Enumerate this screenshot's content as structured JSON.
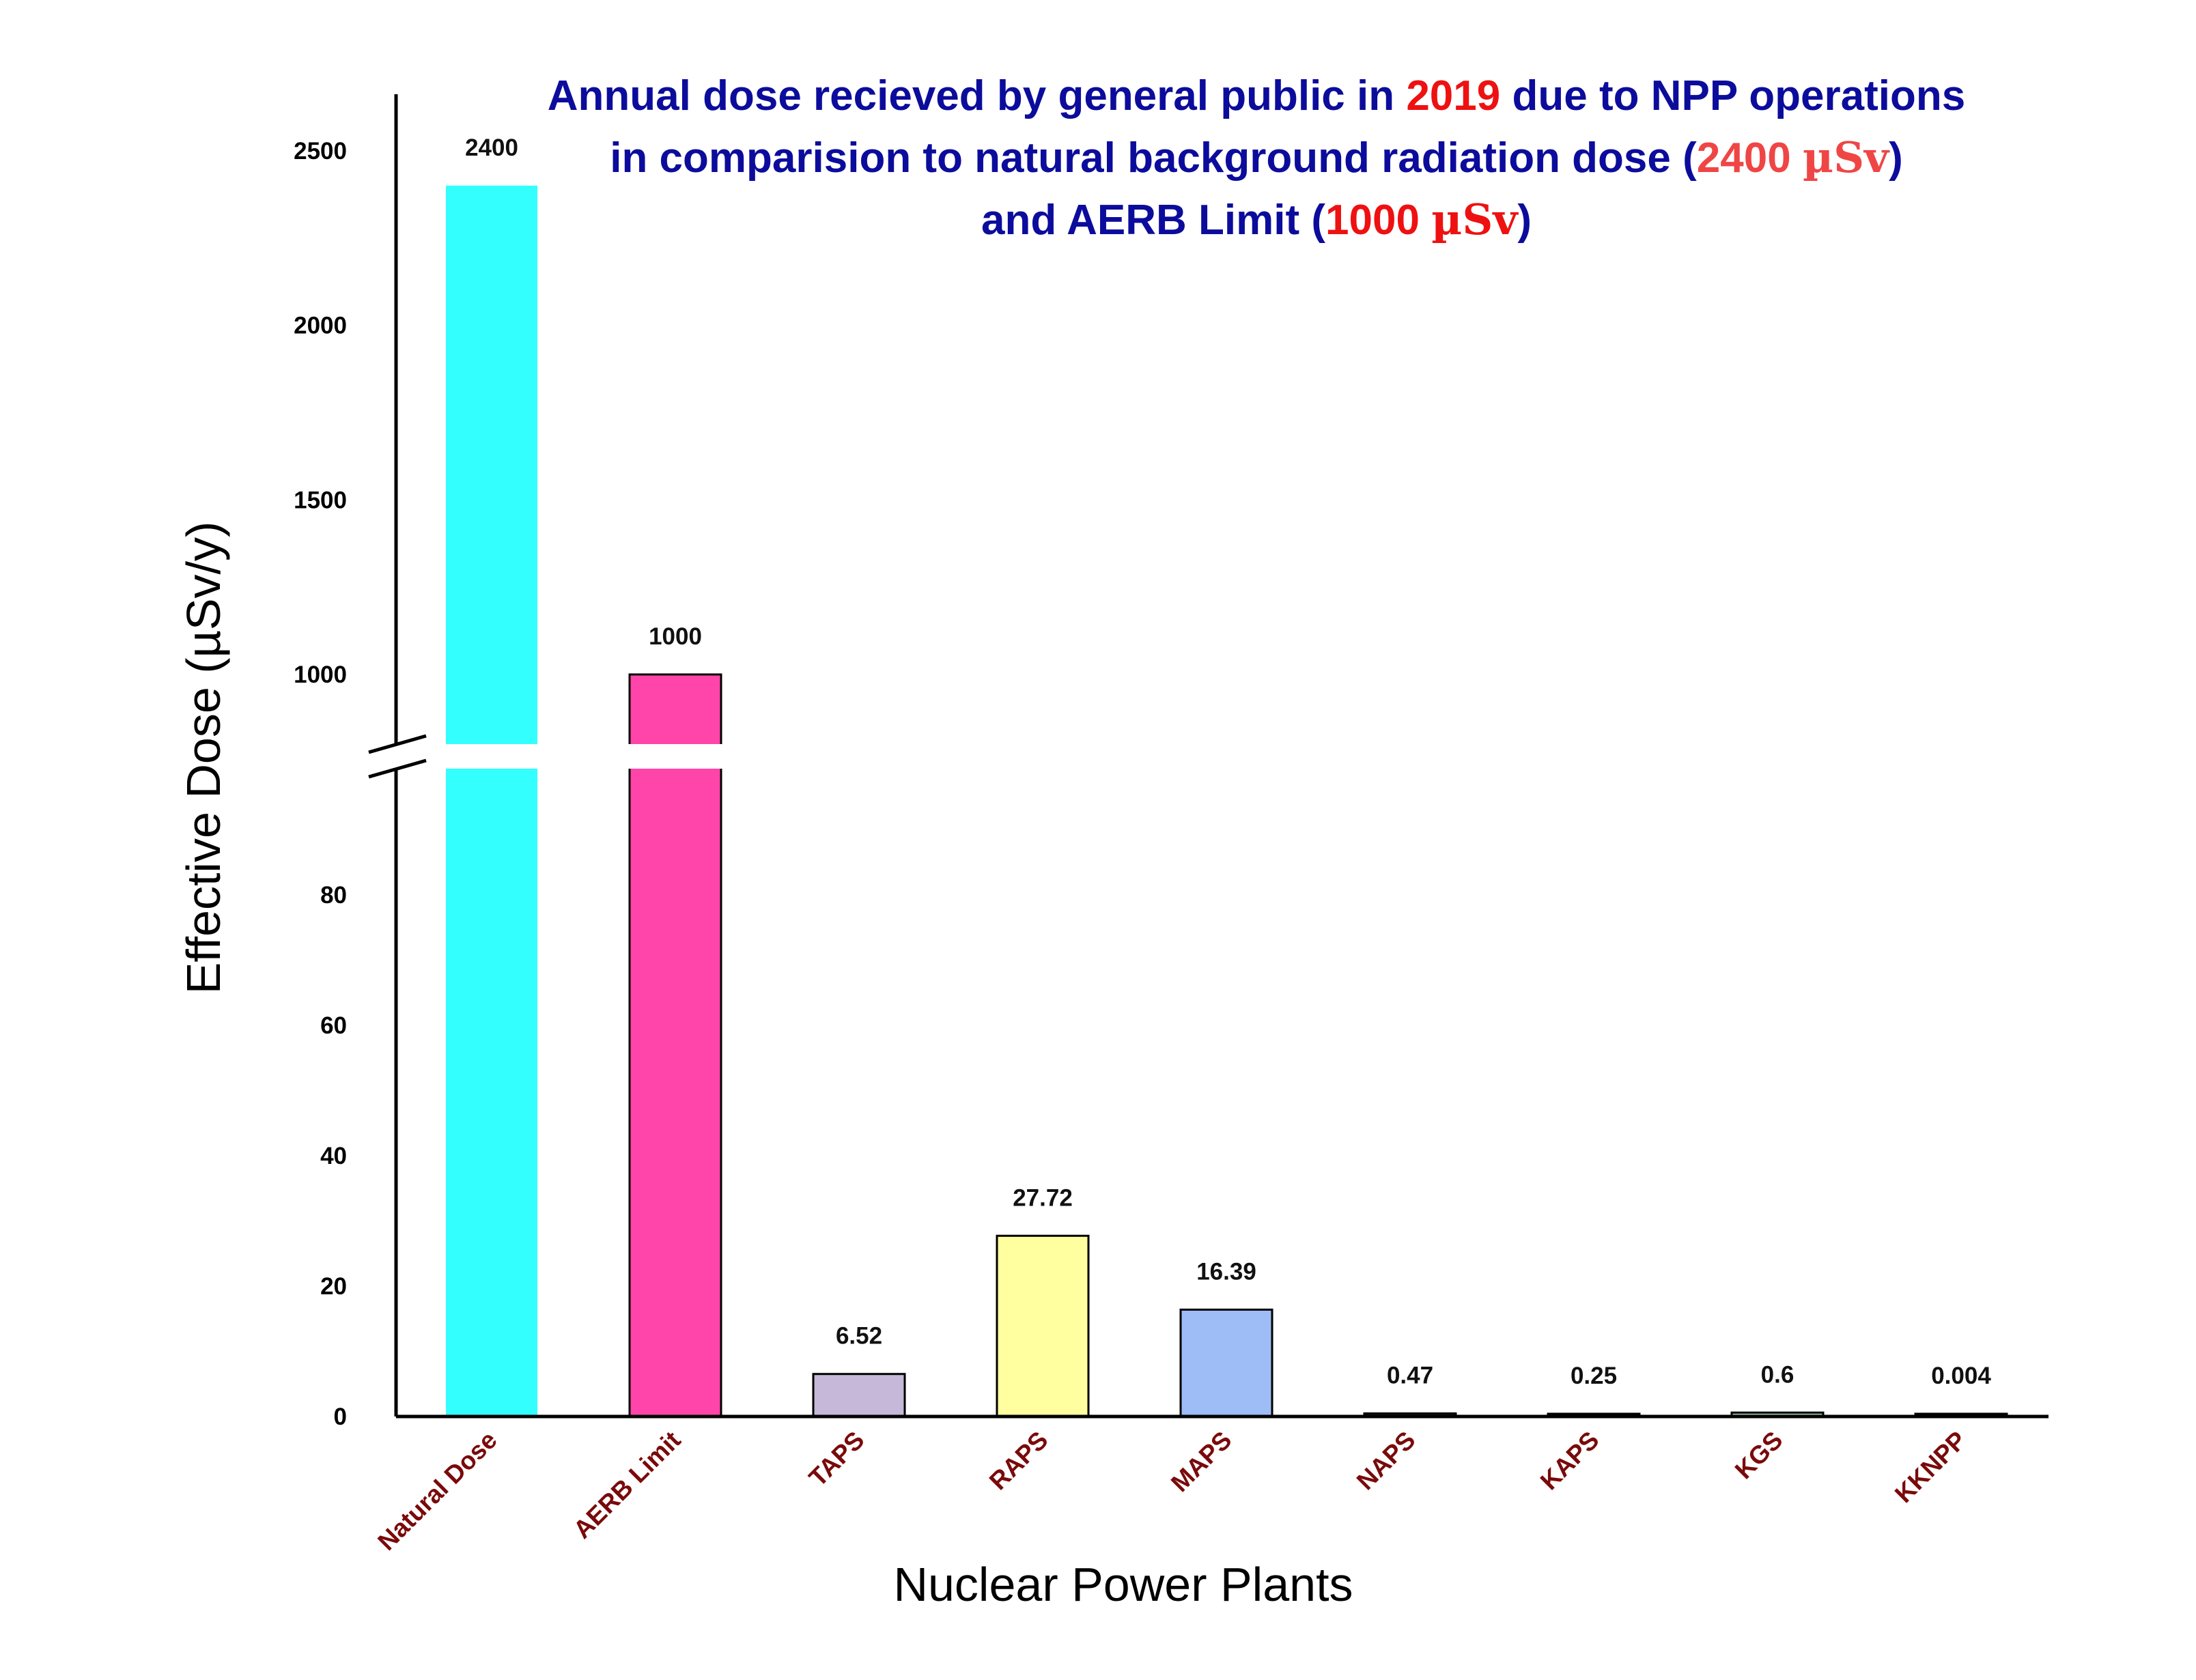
{
  "chart_data": {
    "type": "bar",
    "title": {
      "line1": {
        "part1": "Annual dose recieved by general public in ",
        "year": "2019",
        "part2": " due to NPP operations"
      },
      "line2": {
        "part1": "in comparision to natural background radiation dose (",
        "value": "2400 ",
        "unit": "µSv",
        "part2": ")"
      },
      "line3": {
        "part1": "and AERB Limit (",
        "value": "1000 ",
        "unit": "µSv",
        "part2": ")"
      }
    },
    "xlabel": "Nuclear Power Plants",
    "ylabel": "Effective Dose (µSv/y)",
    "axis_break": true,
    "y_lower_range": [
      0,
      100
    ],
    "y_upper_range": [
      800,
      2600
    ],
    "y_ticks_lower": [
      "0",
      "20",
      "40",
      "60",
      "80"
    ],
    "y_ticks_upper": [
      "1000",
      "1500",
      "2000",
      "2500"
    ],
    "categories": [
      "Natural Dose",
      "AERB Limit",
      "TAPS",
      "RAPS",
      "MAPS",
      "NAPS",
      "KAPS",
      "KGS",
      "KKNPP"
    ],
    "values": [
      2400,
      1000,
      6.52,
      27.72,
      16.39,
      0.47,
      0.25,
      0.6,
      0.004
    ],
    "value_labels": [
      "2400",
      "1000",
      "6.52",
      "27.72",
      "16.39",
      "0.47",
      "0.25",
      "0.6",
      "0.004"
    ],
    "bar_colors": [
      "#33ffff",
      "#ff44aa",
      "#c6b8d8",
      "#ffffa0",
      "#9ebcf6",
      "#2a2a2a",
      "#3a3a3a",
      "#a0c4a8",
      "#555555"
    ],
    "category_label_color": "#7a0a0a",
    "title_color": "#0c0c9c",
    "highlight_color": "#ee1111",
    "grid": false,
    "legend": "none"
  }
}
